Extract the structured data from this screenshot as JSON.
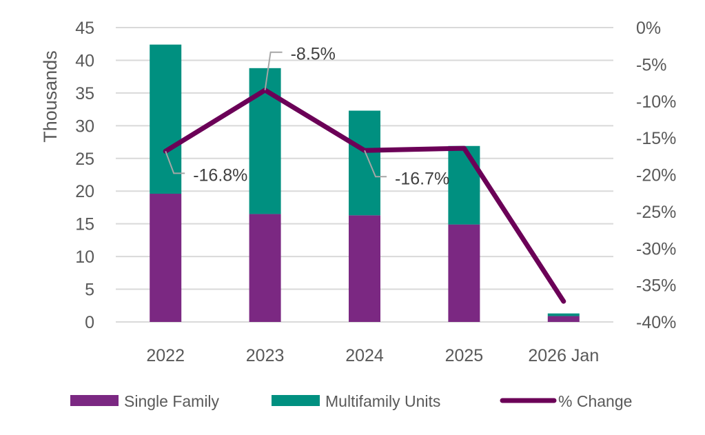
{
  "chart_data": {
    "type": "bar",
    "stacked": true,
    "title": "",
    "xlabel": "",
    "ylabel": "Thousands",
    "ylim": [
      0,
      45
    ],
    "y_ticks": [
      "0",
      "5",
      "10",
      "15",
      "20",
      "25",
      "30",
      "35",
      "40",
      "45"
    ],
    "y_tick_values": [
      0,
      5,
      10,
      15,
      20,
      25,
      30,
      35,
      40,
      45
    ],
    "y2lim": [
      -40,
      0
    ],
    "y2_ticks": [
      "0%",
      "-5%",
      "-10%",
      "-15%",
      "-20%",
      "-25%",
      "-30%",
      "-35%",
      "-40%"
    ],
    "y2_tick_values": [
      0,
      -5,
      -10,
      -15,
      -20,
      -25,
      -30,
      -35,
      -40
    ],
    "grid": true,
    "categories": [
      "2022",
      "2023",
      "2024",
      "2025",
      "2026 Jan"
    ],
    "series": [
      {
        "name": "Single Family",
        "type": "bar",
        "axis": "left",
        "color": "#7B2882",
        "values": [
          19.6,
          16.5,
          16.3,
          14.9,
          0.9
        ]
      },
      {
        "name": "Multifamily Units",
        "type": "bar",
        "axis": "left",
        "color": "#009080",
        "values": [
          22.8,
          22.3,
          16.0,
          12.0,
          0.4
        ]
      },
      {
        "name": "% Change",
        "type": "line",
        "axis": "right",
        "color": "#6B0057",
        "values": [
          -16.8,
          -8.5,
          -16.7,
          -16.4,
          -37.2
        ]
      }
    ],
    "annotations": [
      {
        "series": "% Change",
        "category": "2022",
        "text": "-16.8%"
      },
      {
        "series": "% Change",
        "category": "2023",
        "text": "-8.5%"
      },
      {
        "series": "% Change",
        "category": "2024",
        "text": "-16.7%"
      }
    ],
    "legend": {
      "position": "bottom",
      "entries": [
        "Single Family",
        "Multifamily Units",
        "% Change"
      ]
    }
  }
}
